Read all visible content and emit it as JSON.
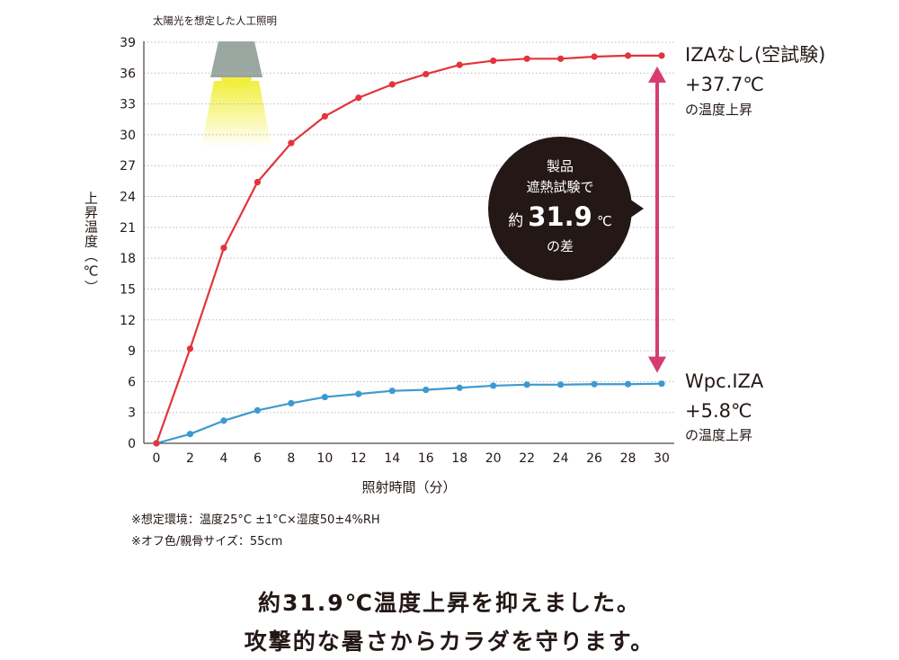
{
  "chart_data": {
    "type": "line",
    "title": "",
    "xlabel": "照射時間（分）",
    "ylabel": "上昇温度（℃）",
    "x": [
      0,
      2,
      4,
      6,
      8,
      10,
      12,
      14,
      16,
      18,
      20,
      22,
      24,
      26,
      28,
      30
    ],
    "xlim": [
      0,
      30
    ],
    "ylim": [
      0,
      39
    ],
    "xticks": [
      "0",
      "2",
      "4",
      "6",
      "8",
      "10",
      "12",
      "14",
      "16",
      "18",
      "20",
      "22",
      "24",
      "26",
      "28",
      "30"
    ],
    "yticks": [
      "0",
      "3",
      "6",
      "9",
      "12",
      "15",
      "18",
      "21",
      "24",
      "27",
      "30",
      "33",
      "36",
      "39"
    ],
    "grid": "horizontal dotted",
    "series": [
      {
        "name": "IZAなし(空試験)",
        "color": "#e2343a",
        "values": [
          0,
          9.2,
          19.0,
          25.4,
          29.2,
          31.8,
          33.6,
          34.9,
          35.9,
          36.8,
          37.2,
          37.4,
          37.4,
          37.6,
          37.7,
          37.7
        ],
        "label_lines": [
          "IZAなし(空試験)",
          "+37.7℃",
          "の温度上昇"
        ]
      },
      {
        "name": "Wpc.IZA",
        "color": "#3d9ad1",
        "values": [
          0,
          0.9,
          2.2,
          3.2,
          3.9,
          4.5,
          4.8,
          5.1,
          5.2,
          5.4,
          5.6,
          5.7,
          5.7,
          5.75,
          5.75,
          5.8
        ],
        "label_lines": [
          "Wpc.IZA",
          "+5.8℃",
          "の温度上昇"
        ]
      }
    ],
    "difference": {
      "arrow_color": "#d63d6e",
      "bubble_color": "#231815",
      "bubble_lines": [
        "製品",
        "遮熱試験で"
      ],
      "bubble_prefix": "約",
      "bubble_value": "31.9",
      "bubble_unit": "℃",
      "bubble_suffix": "の差"
    },
    "lamp_caption": "太陽光を想定した人工照明"
  },
  "notes": [
    "※想定環境：温度25°C ±1°C×湿度50±4%RH",
    "※オフ色/親骨サイズ：55cm"
  ],
  "headline": [
    "約31.9℃温度上昇を抑えました。",
    "攻撃的な暑さからカラダを守ります。"
  ]
}
